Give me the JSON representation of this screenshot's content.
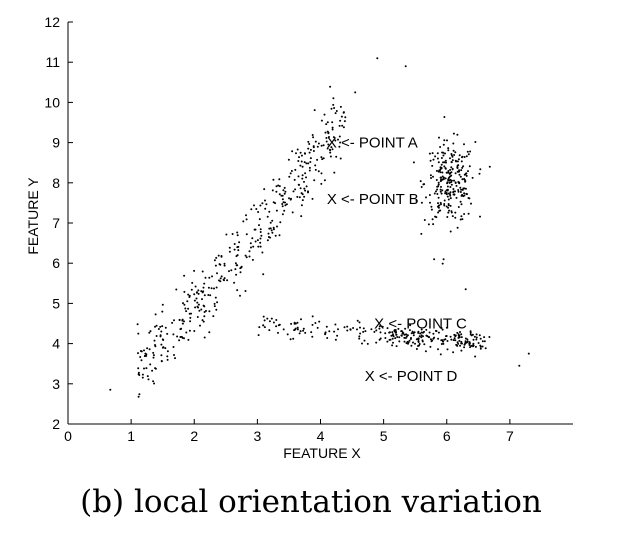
{
  "chart_data": {
    "type": "scatter",
    "xlabel": "FEATURE X",
    "ylabel": "FEATURE Y",
    "xlim": [
      0,
      8
    ],
    "ylim": [
      2,
      12
    ],
    "xticks": [
      0,
      1,
      2,
      3,
      4,
      5,
      6,
      7
    ],
    "yticks": [
      2,
      3,
      4,
      5,
      6,
      7,
      8,
      9,
      10,
      11,
      12
    ],
    "grid": false,
    "marker_color": "#000000",
    "annotations": [
      {
        "text": "X <- POINT A",
        "x": 4.1,
        "y": 9.0
      },
      {
        "text": "X <- POINT B",
        "x": 4.1,
        "y": 7.6
      },
      {
        "text": "X <- POINT C",
        "x": 4.85,
        "y": 4.5
      },
      {
        "text": "X <- POINT D",
        "x": 4.7,
        "y": 3.2
      }
    ],
    "clusters": [
      {
        "description": "elongated diagonal band",
        "x_range": [
          0.7,
          4.5
        ],
        "y_range": [
          2.8,
          10.3
        ],
        "count": 420
      },
      {
        "description": "upper right cluster",
        "x_center": 6.05,
        "y_center": 8.0,
        "count": 260
      },
      {
        "description": "lower horizontal band",
        "x_range": [
          2.8,
          7.3
        ],
        "y_center": 4.0,
        "count": 280
      }
    ],
    "outliers": [
      [
        4.9,
        11.1
      ],
      [
        5.35,
        10.9
      ],
      [
        4.55,
        10.25
      ],
      [
        0.67,
        2.85
      ],
      [
        7.3,
        3.75
      ],
      [
        7.15,
        3.45
      ],
      [
        6.3,
        5.35
      ],
      [
        5.8,
        6.1
      ],
      [
        5.95,
        6.1
      ]
    ]
  },
  "caption": "(b) local orientation variation"
}
